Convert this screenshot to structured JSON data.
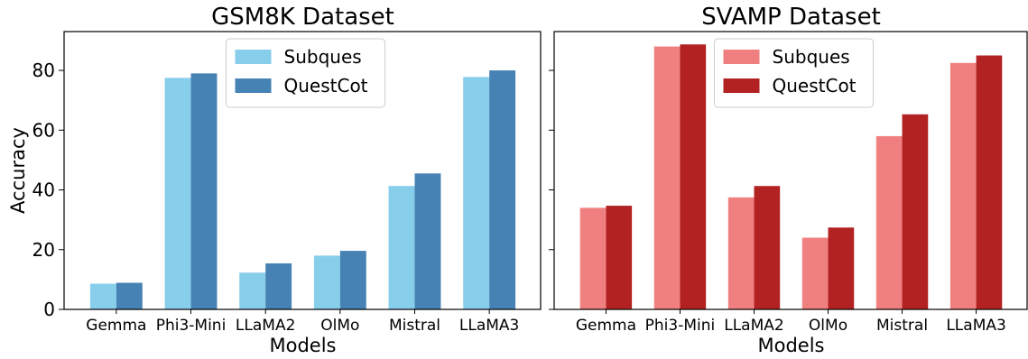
{
  "chart_data": [
    {
      "type": "bar",
      "title": "GSM8K Dataset",
      "xlabel": "Models",
      "ylabel": "Accuracy",
      "categories": [
        "Gemma",
        "Phi3-Mini",
        "LLaMA2",
        "OlMo",
        "Mistral",
        "LLaMA3"
      ],
      "ylim": [
        0,
        93
      ],
      "yticks": [
        "0",
        "20",
        "40",
        "60",
        "80"
      ],
      "legend_position": "top-center",
      "grid": false,
      "series": [
        {
          "name": "Subques",
          "color": "#87CEEB",
          "values": [
            8.6,
            77.5,
            12.3,
            18.0,
            41.3,
            77.8
          ]
        },
        {
          "name": "QuestCot",
          "color": "#4682B4",
          "values": [
            8.9,
            79.0,
            15.4,
            19.6,
            45.5,
            80.0
          ]
        }
      ]
    },
    {
      "type": "bar",
      "title": "SVAMP Dataset",
      "xlabel": "Models",
      "ylabel": "",
      "categories": [
        "Gemma",
        "Phi3-Mini",
        "LLaMA2",
        "OlMo",
        "Mistral",
        "LLaMA3"
      ],
      "ylim": [
        0,
        93
      ],
      "yticks": [],
      "legend_position": "top-center",
      "grid": false,
      "series": [
        {
          "name": "Subques",
          "color": "#F08080",
          "values": [
            34.0,
            88.0,
            37.5,
            24.0,
            58.0,
            82.5
          ]
        },
        {
          "name": "QuestCot",
          "color": "#B22222",
          "values": [
            34.7,
            88.7,
            41.3,
            27.4,
            65.3,
            85.0
          ]
        }
      ]
    }
  ]
}
